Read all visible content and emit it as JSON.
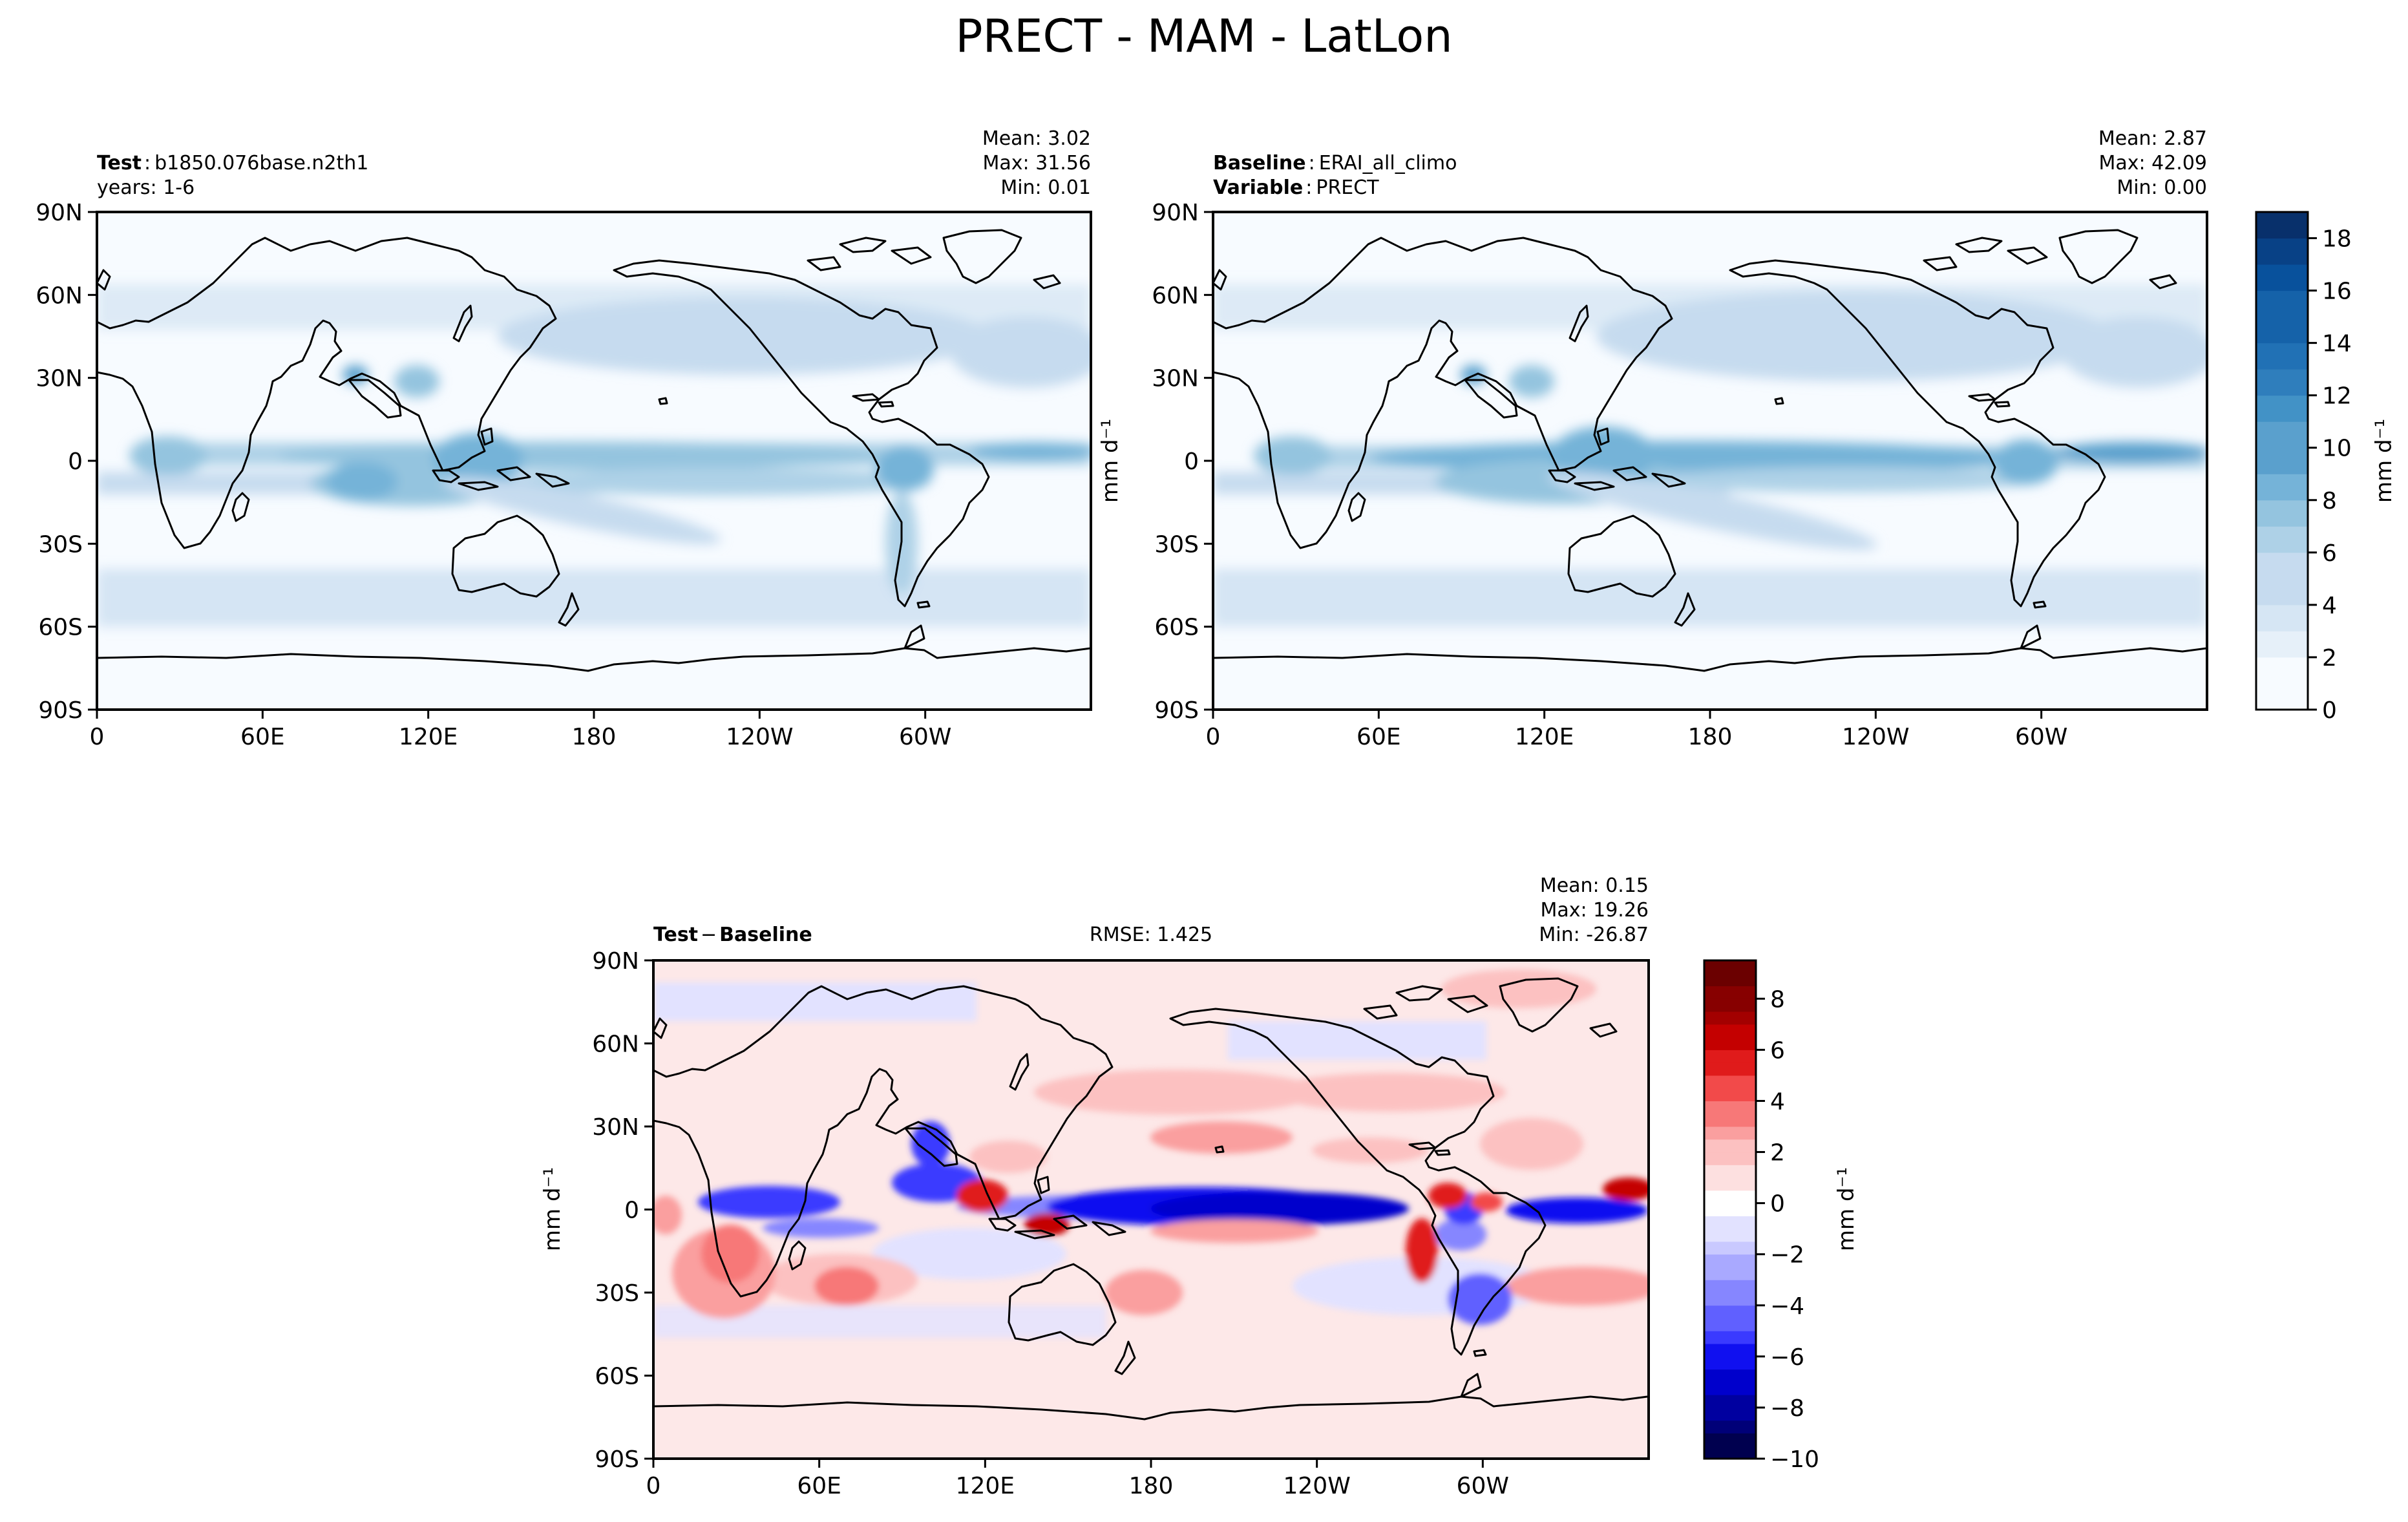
{
  "figure": {
    "title": "PRECT - MAM - LatLon"
  },
  "panels": {
    "test": {
      "label_bold": "Test",
      "label_value": "b1850.076base.n2th1",
      "sub_label": "years: 1-6",
      "mean": "Mean:  3.02",
      "max": "Max: 31.56",
      "min": "Min:  0.01"
    },
    "baseline": {
      "label_bold": "Baseline",
      "label_value": "ERAI_all_climo",
      "var_bold": "Variable",
      "var_value": "PRECT",
      "mean": "Mean:  2.87",
      "max": "Max: 42.09",
      "min": "Min:  0.00"
    },
    "diff": {
      "label_a": "Test",
      "label_minus": "−",
      "label_b": "Baseline",
      "rmse": "RMSE: 1.425",
      "mean": "Mean:  0.15",
      "max": "Max: 19.26",
      "min": "Min: -26.87"
    }
  },
  "colors": {
    "blues": [
      "#f7fbff",
      "#e6f0f9",
      "#d6e6f4",
      "#c6dbef",
      "#aed1e7",
      "#94c4df",
      "#75b3d8",
      "#5aa0cd",
      "#4292c6",
      "#2f7ebc",
      "#2171b5",
      "#1562a9",
      "#08519c",
      "#084186",
      "#08306b"
    ],
    "reds": [
      "#fde0e0",
      "#fcc1c1",
      "#fa9f9f",
      "#f77878",
      "#f24a4a",
      "#e01b1b",
      "#c40000",
      "#a30000",
      "#870000",
      "#6b0000"
    ],
    "diff_blues": [
      "#e2e2ff",
      "#c9c9ff",
      "#a9a9ff",
      "#8686ff",
      "#6060ff",
      "#3a3aff",
      "#1010f0",
      "#0000cc",
      "#0000a0",
      "#000078",
      "#00004f"
    ],
    "coast": "#000000"
  },
  "chart_data": [
    {
      "type": "heatmap",
      "name": "test",
      "title": "Test: b1850.076base.n2th1",
      "x_ticks": [
        "0",
        "60E",
        "120E",
        "180",
        "120W",
        "60W"
      ],
      "y_ticks": [
        "90N",
        "60N",
        "30N",
        "0",
        "30S",
        "60S",
        "90S"
      ],
      "x_range": [
        0,
        360
      ],
      "y_range": [
        -90,
        90
      ],
      "stats": {
        "mean": 3.02,
        "max": 31.56,
        "min": 0.01
      }
    },
    {
      "type": "heatmap",
      "name": "baseline",
      "title": "Baseline: ERAI_all_climo",
      "x_ticks": [
        "0",
        "60E",
        "120E",
        "180",
        "120W",
        "60W"
      ],
      "y_ticks": [
        "90N",
        "60N",
        "30N",
        "0",
        "30S",
        "60S",
        "90S"
      ],
      "x_range": [
        0,
        360
      ],
      "y_range": [
        -90,
        90
      ],
      "colorbar": {
        "label": "mm d⁻¹",
        "ticks": [
          "0",
          "2",
          "4",
          "6",
          "8",
          "10",
          "12",
          "14",
          "16",
          "18"
        ],
        "range": [
          0,
          19
        ]
      },
      "stats": {
        "mean": 2.87,
        "max": 42.09,
        "min": 0.0
      }
    },
    {
      "type": "heatmap",
      "name": "difference",
      "title": "Test − Baseline",
      "x_ticks": [
        "0",
        "60E",
        "120E",
        "180",
        "120W",
        "60W"
      ],
      "y_ticks": [
        "90N",
        "60N",
        "30N",
        "0",
        "30S",
        "60S",
        "90S"
      ],
      "x_range": [
        0,
        360
      ],
      "y_range": [
        -90,
        90
      ],
      "colorbar": {
        "label": "mm d⁻¹",
        "ticks": [
          "−10",
          "−8",
          "−6",
          "−4",
          "−2",
          "0",
          "2",
          "4",
          "6",
          "8"
        ],
        "range": [
          -10,
          9.5
        ]
      },
      "stats": {
        "mean": 0.15,
        "max": 19.26,
        "min": -26.87,
        "rmse": 1.425
      }
    }
  ],
  "axis_label": "mm d⁻¹"
}
